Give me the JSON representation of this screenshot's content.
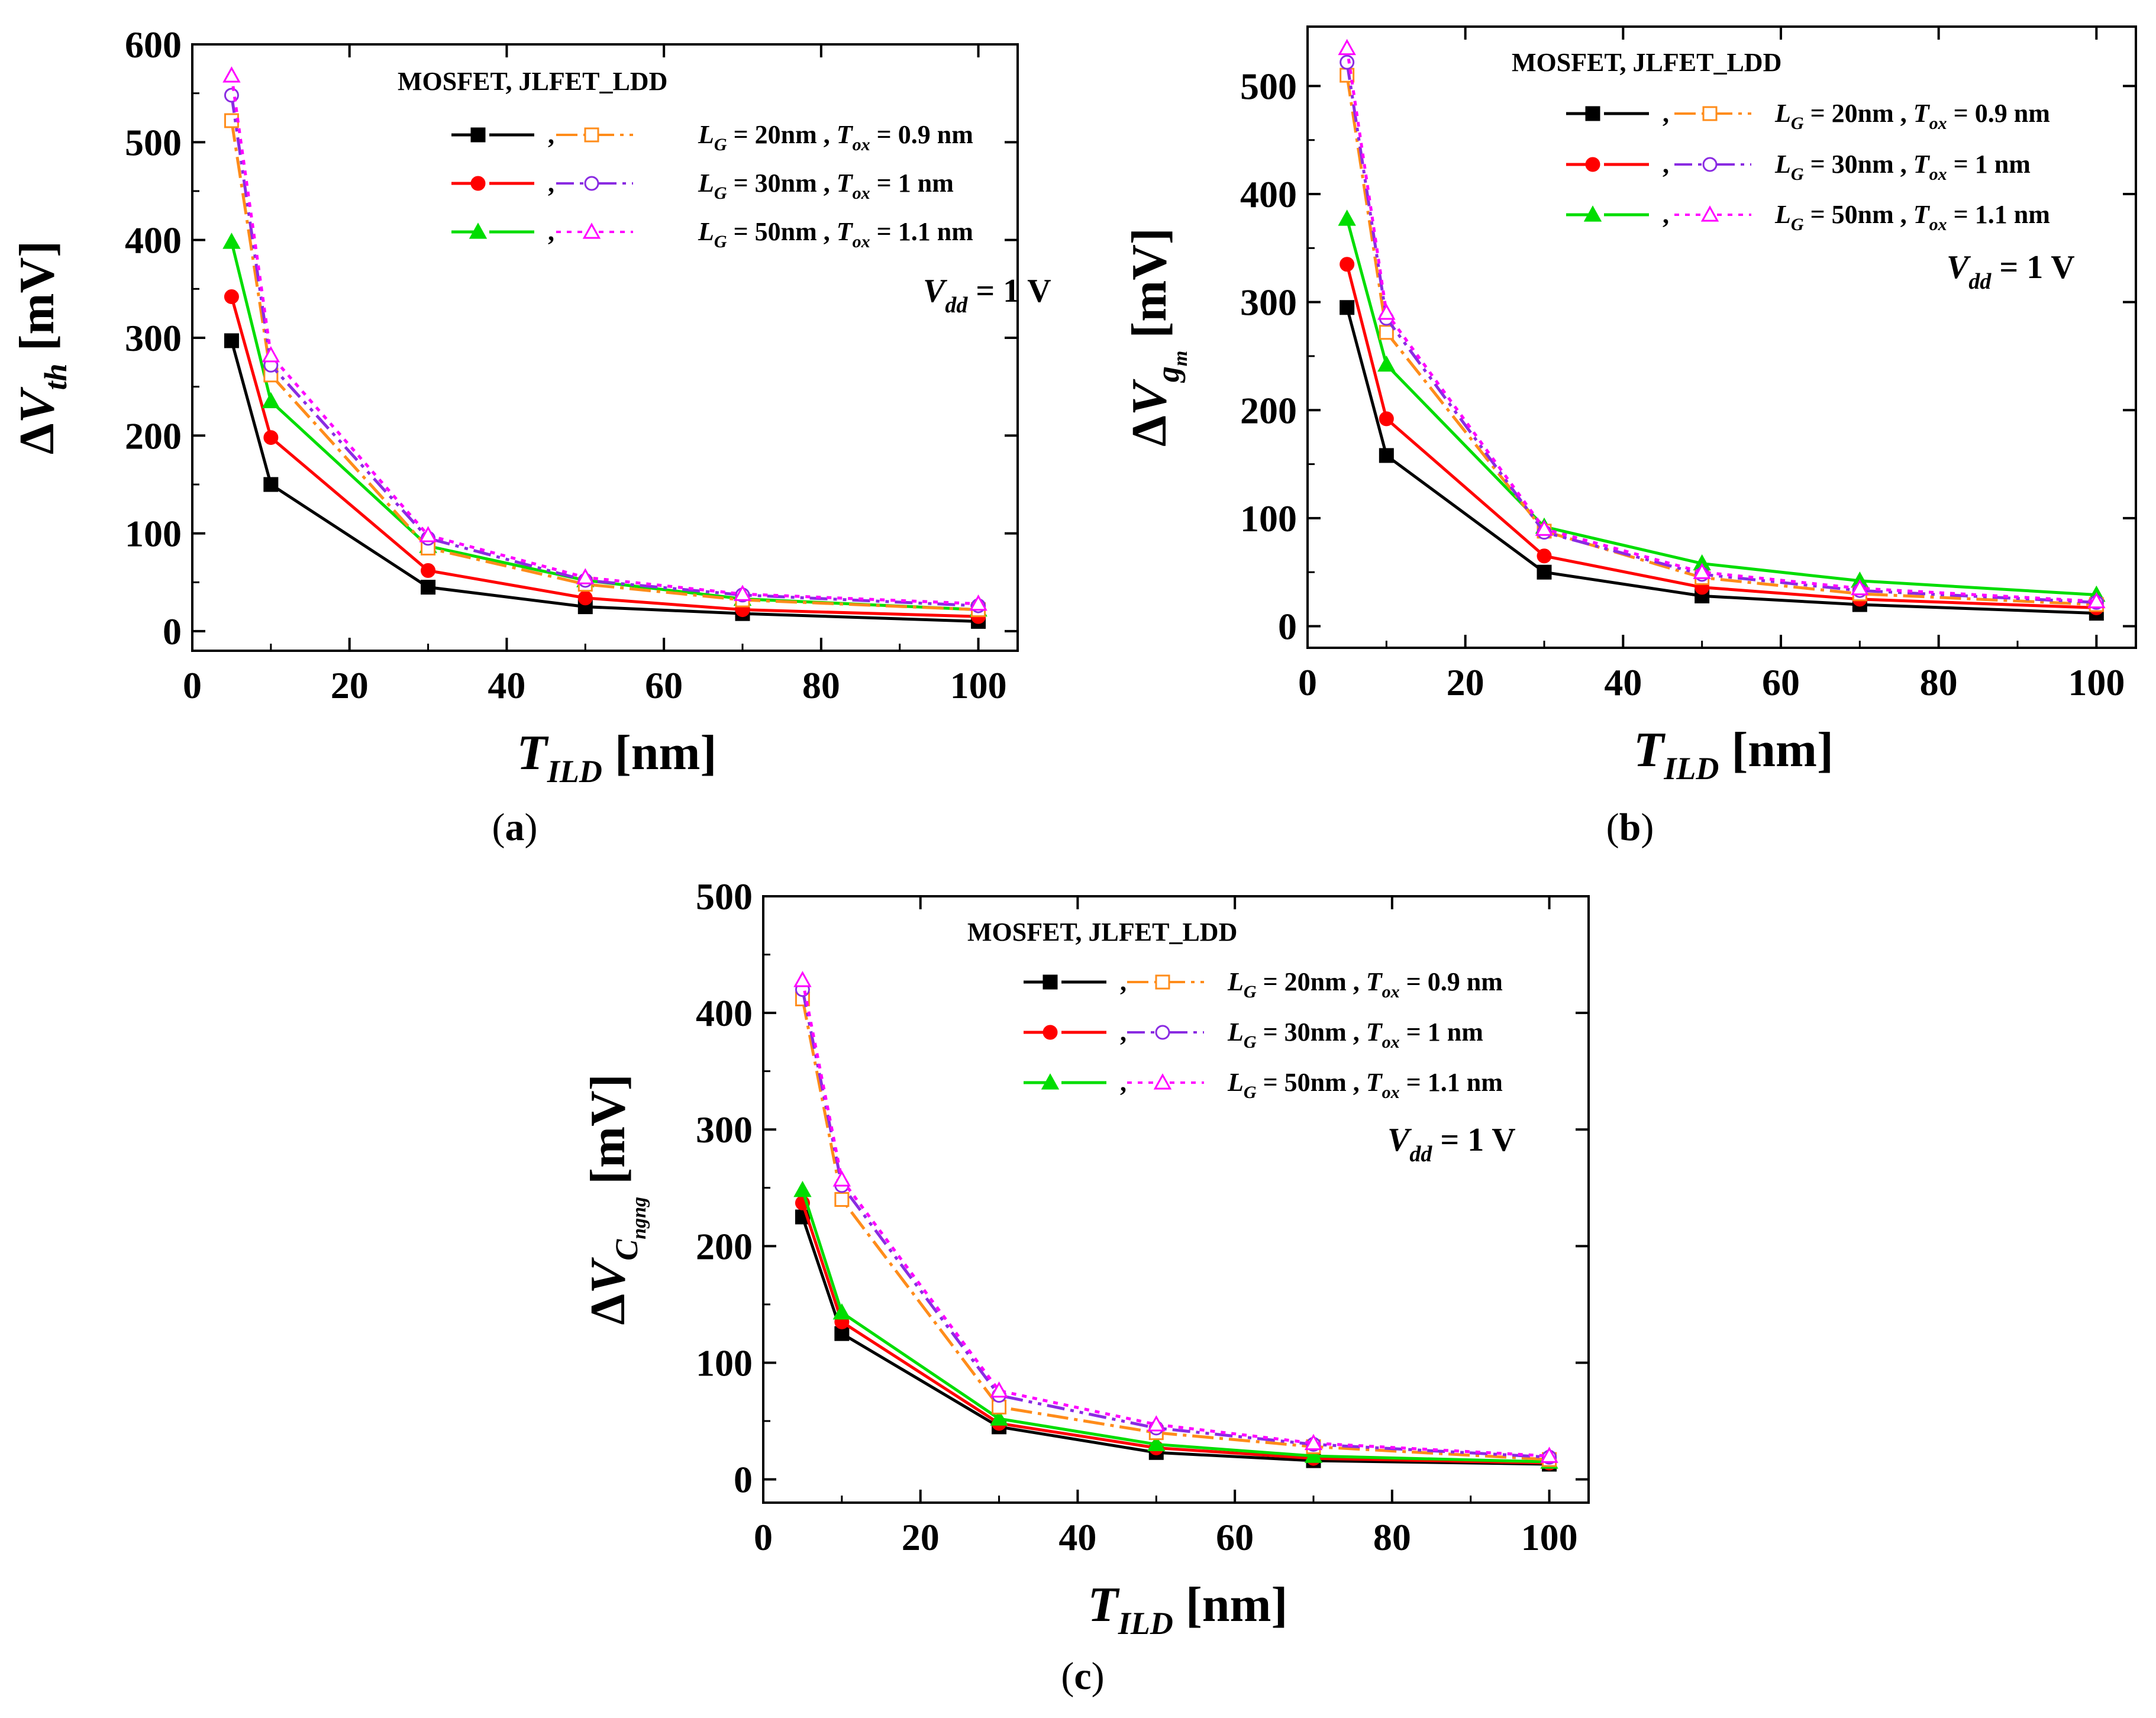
{
  "chart_data": [
    {
      "id": "a",
      "type": "line",
      "caption_letter": "a",
      "ylabel": {
        "prefix": "ΔV",
        "sub": "th",
        "unit": "[mV]"
      },
      "xlabel": {
        "main": "T",
        "sub": "ILD",
        "unit": "[nm]"
      },
      "xlim": [
        0,
        105
      ],
      "ylim": [
        -20,
        600
      ],
      "xticks": [
        0,
        20,
        40,
        60,
        80,
        100
      ],
      "yticks": [
        0,
        100,
        200,
        300,
        400,
        500,
        600
      ],
      "legend": {
        "header": "MOSFET,  JLFET_LDD",
        "rows": [
          {
            "lg_label": "L",
            "lg_sub": "G",
            "lg_value": "= 20nm ,",
            "tox_label": "T",
            "tox_sub": "ox",
            "tox_value": "= 0.9 nm"
          },
          {
            "lg_label": "L",
            "lg_sub": "G",
            "lg_value": "= 30nm ,",
            "tox_label": "T",
            "tox_sub": "ox",
            "tox_value": "= 1 nm"
          },
          {
            "lg_label": "L",
            "lg_sub": "G",
            "lg_value": "= 50nm ,",
            "tox_label": "T",
            "tox_sub": "ox",
            "tox_value": "= 1.1 nm"
          }
        ],
        "separator": ","
      },
      "annotation": {
        "main": "V",
        "sub": "dd",
        "value": "= 1 V"
      },
      "x": [
        5,
        10,
        30,
        50,
        70,
        100
      ],
      "series": [
        {
          "name": "MOSFET LG=20nm",
          "color": "#000000",
          "marker": "square-filled",
          "dash": "solid",
          "values": [
            297,
            150,
            45,
            25,
            18,
            10
          ]
        },
        {
          "name": "MOSFET LG=30nm",
          "color": "#ff0000",
          "marker": "circle-filled",
          "dash": "solid",
          "values": [
            342,
            198,
            62,
            34,
            22,
            15
          ]
        },
        {
          "name": "MOSFET LG=50nm",
          "color": "#00dd00",
          "marker": "triangle-filled",
          "dash": "solid",
          "values": [
            398,
            235,
            87,
            52,
            33,
            22
          ]
        },
        {
          "name": "JLFET_LDD LG=20nm",
          "color": "#ff8c1a",
          "marker": "square-open",
          "dash": "dashdot",
          "values": [
            522,
            262,
            85,
            48,
            32,
            22
          ]
        },
        {
          "name": "JLFET_LDD LG=30nm",
          "color": "#8a2be2",
          "marker": "circle-open",
          "dash": "dashdotdot",
          "values": [
            548,
            272,
            95,
            52,
            37,
            26
          ]
        },
        {
          "name": "JLFET_LDD LG=50nm",
          "color": "#ff00ff",
          "marker": "triangle-open",
          "dash": "dotted",
          "values": [
            568,
            282,
            98,
            55,
            38,
            28
          ]
        }
      ]
    },
    {
      "id": "b",
      "type": "line",
      "caption_letter": "b",
      "ylabel": {
        "prefix": "ΔV",
        "sub": "g",
        "subsub": "m",
        "unit": "[mV]"
      },
      "xlabel": {
        "main": "T",
        "sub": "ILD",
        "unit": "[nm]"
      },
      "xlim": [
        0,
        105
      ],
      "ylim": [
        -20,
        555
      ],
      "xticks": [
        0,
        20,
        40,
        60,
        80,
        100
      ],
      "yticks": [
        0,
        100,
        200,
        300,
        400,
        500
      ],
      "legend": {
        "header": "MOSFET,  JLFET_LDD",
        "rows": [
          {
            "lg_label": "L",
            "lg_sub": "G",
            "lg_value": "= 20nm ,",
            "tox_label": "T",
            "tox_sub": "ox",
            "tox_value": "= 0.9 nm"
          },
          {
            "lg_label": "L",
            "lg_sub": "G",
            "lg_value": "= 30nm ,",
            "tox_label": "T",
            "tox_sub": "ox",
            "tox_value": "= 1 nm"
          },
          {
            "lg_label": "L",
            "lg_sub": "G",
            "lg_value": "= 50nm ,",
            "tox_label": "T",
            "tox_sub": "ox",
            "tox_value": "= 1.1 nm"
          }
        ],
        "separator": ","
      },
      "annotation": {
        "main": "V",
        "sub": "dd",
        "value": "= 1 V"
      },
      "x": [
        5,
        10,
        30,
        50,
        70,
        100
      ],
      "series": [
        {
          "name": "MOSFET LG=20nm",
          "color": "#000000",
          "marker": "square-filled",
          "dash": "solid",
          "values": [
            295,
            158,
            50,
            28,
            20,
            12
          ]
        },
        {
          "name": "MOSFET LG=30nm",
          "color": "#ff0000",
          "marker": "circle-filled",
          "dash": "solid",
          "values": [
            335,
            192,
            65,
            36,
            25,
            17
          ]
        },
        {
          "name": "MOSFET LG=50nm",
          "color": "#00dd00",
          "marker": "triangle-filled",
          "dash": "solid",
          "values": [
            377,
            242,
            92,
            58,
            42,
            29
          ]
        },
        {
          "name": "JLFET_LDD LG=20nm",
          "color": "#ff8c1a",
          "marker": "square-open",
          "dash": "dashdot",
          "values": [
            510,
            272,
            88,
            45,
            30,
            20
          ]
        },
        {
          "name": "JLFET_LDD LG=30nm",
          "color": "#8a2be2",
          "marker": "circle-open",
          "dash": "dashdotdot",
          "values": [
            522,
            285,
            87,
            48,
            33,
            22
          ]
        },
        {
          "name": "JLFET_LDD LG=50nm",
          "color": "#ff00ff",
          "marker": "triangle-open",
          "dash": "dotted",
          "values": [
            535,
            290,
            90,
            50,
            35,
            23
          ]
        }
      ]
    },
    {
      "id": "c",
      "type": "line",
      "caption_letter": "c",
      "ylabel": {
        "prefix": "ΔV",
        "sub": "C",
        "subsub": "ngng",
        "unit": "[mV]"
      },
      "xlabel": {
        "main": "T",
        "sub": "ILD",
        "unit": "[nm]"
      },
      "xlim": [
        0,
        105
      ],
      "ylim": [
        -20,
        500
      ],
      "xticks": [
        0,
        20,
        40,
        60,
        80,
        100
      ],
      "yticks": [
        0,
        100,
        200,
        300,
        400,
        500
      ],
      "legend": {
        "header": "MOSFET,  JLFET_LDD",
        "rows": [
          {
            "lg_label": "L",
            "lg_sub": "G",
            "lg_value": "= 20nm ,",
            "tox_label": "T",
            "tox_sub": "ox",
            "tox_value": "= 0.9 nm"
          },
          {
            "lg_label": "L",
            "lg_sub": "G",
            "lg_value": "= 30nm ,",
            "tox_label": "T",
            "tox_sub": "ox",
            "tox_value": "= 1 nm"
          },
          {
            "lg_label": "L",
            "lg_sub": "G",
            "lg_value": "= 50nm ,",
            "tox_label": "T",
            "tox_sub": "ox",
            "tox_value": "= 1.1 nm"
          }
        ],
        "separator": ","
      },
      "annotation": {
        "main": "V",
        "sub": "dd",
        "value": "= 1 V"
      },
      "x": [
        5,
        10,
        30,
        50,
        70,
        100
      ],
      "series": [
        {
          "name": "MOSFET LG=20nm",
          "color": "#000000",
          "marker": "square-filled",
          "dash": "solid",
          "values": [
            225,
            125,
            45,
            23,
            16,
            13
          ]
        },
        {
          "name": "MOSFET LG=30nm",
          "color": "#ff0000",
          "marker": "circle-filled",
          "dash": "solid",
          "values": [
            237,
            135,
            48,
            27,
            18,
            14
          ]
        },
        {
          "name": "MOSFET LG=50nm",
          "color": "#00dd00",
          "marker": "triangle-filled",
          "dash": "solid",
          "values": [
            248,
            143,
            52,
            30,
            20,
            15
          ]
        },
        {
          "name": "JLFET_LDD LG=20nm",
          "color": "#ff8c1a",
          "marker": "square-open",
          "dash": "dashdot",
          "values": [
            412,
            240,
            62,
            40,
            28,
            17
          ]
        },
        {
          "name": "JLFET_LDD LG=30nm",
          "color": "#8a2be2",
          "marker": "circle-open",
          "dash": "dashdotdot",
          "values": [
            420,
            252,
            72,
            44,
            30,
            19
          ]
        },
        {
          "name": "JLFET_LDD LG=50nm",
          "color": "#ff00ff",
          "marker": "triangle-open",
          "dash": "dotted",
          "values": [
            428,
            257,
            76,
            47,
            31,
            20
          ]
        }
      ]
    }
  ]
}
